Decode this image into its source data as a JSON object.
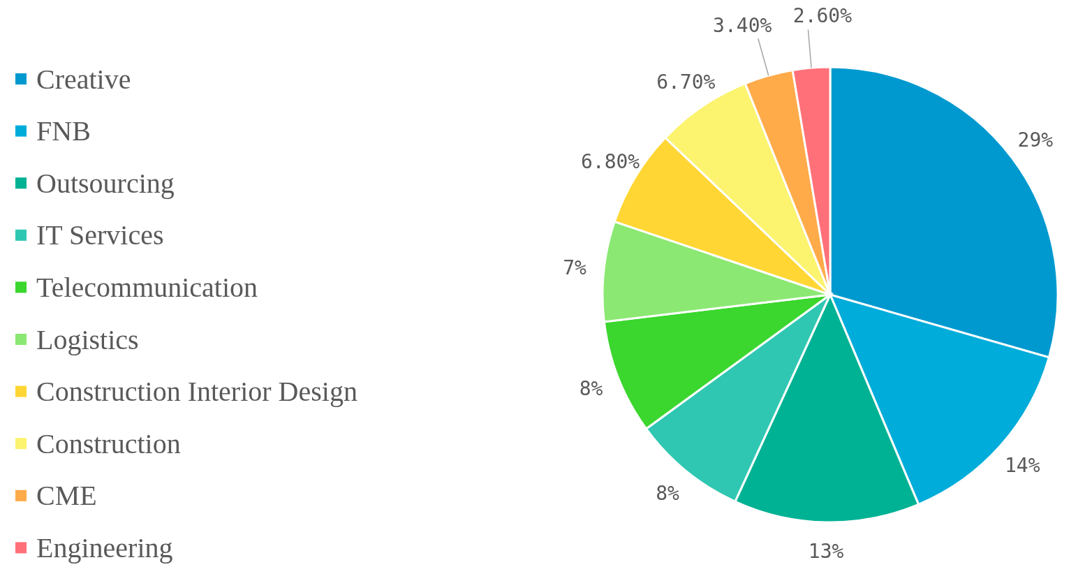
{
  "chart_data": {
    "type": "pie",
    "categories": [
      "Creative",
      "FNB",
      "Outsourcing",
      "IT Services",
      "Telecommunication",
      "Logistics",
      "Construction Interior Design",
      "Construction",
      "CME",
      "Engineering"
    ],
    "values": [
      29,
      14,
      13,
      8,
      8,
      7,
      6.8,
      6.7,
      3.4,
      2.6
    ],
    "value_labels": [
      "29%",
      "14%",
      "13%",
      "8%",
      "8%",
      "7%",
      "6.80%",
      "6.70%",
      "3.40%",
      "2.60%"
    ],
    "colors": [
      "#0099cf",
      "#00acd9",
      "#00b294",
      "#2fc7b2",
      "#3bd62e",
      "#8be872",
      "#ffd633",
      "#fcf36f",
      "#ffab4a",
      "#ff7079"
    ],
    "legend": "left"
  }
}
